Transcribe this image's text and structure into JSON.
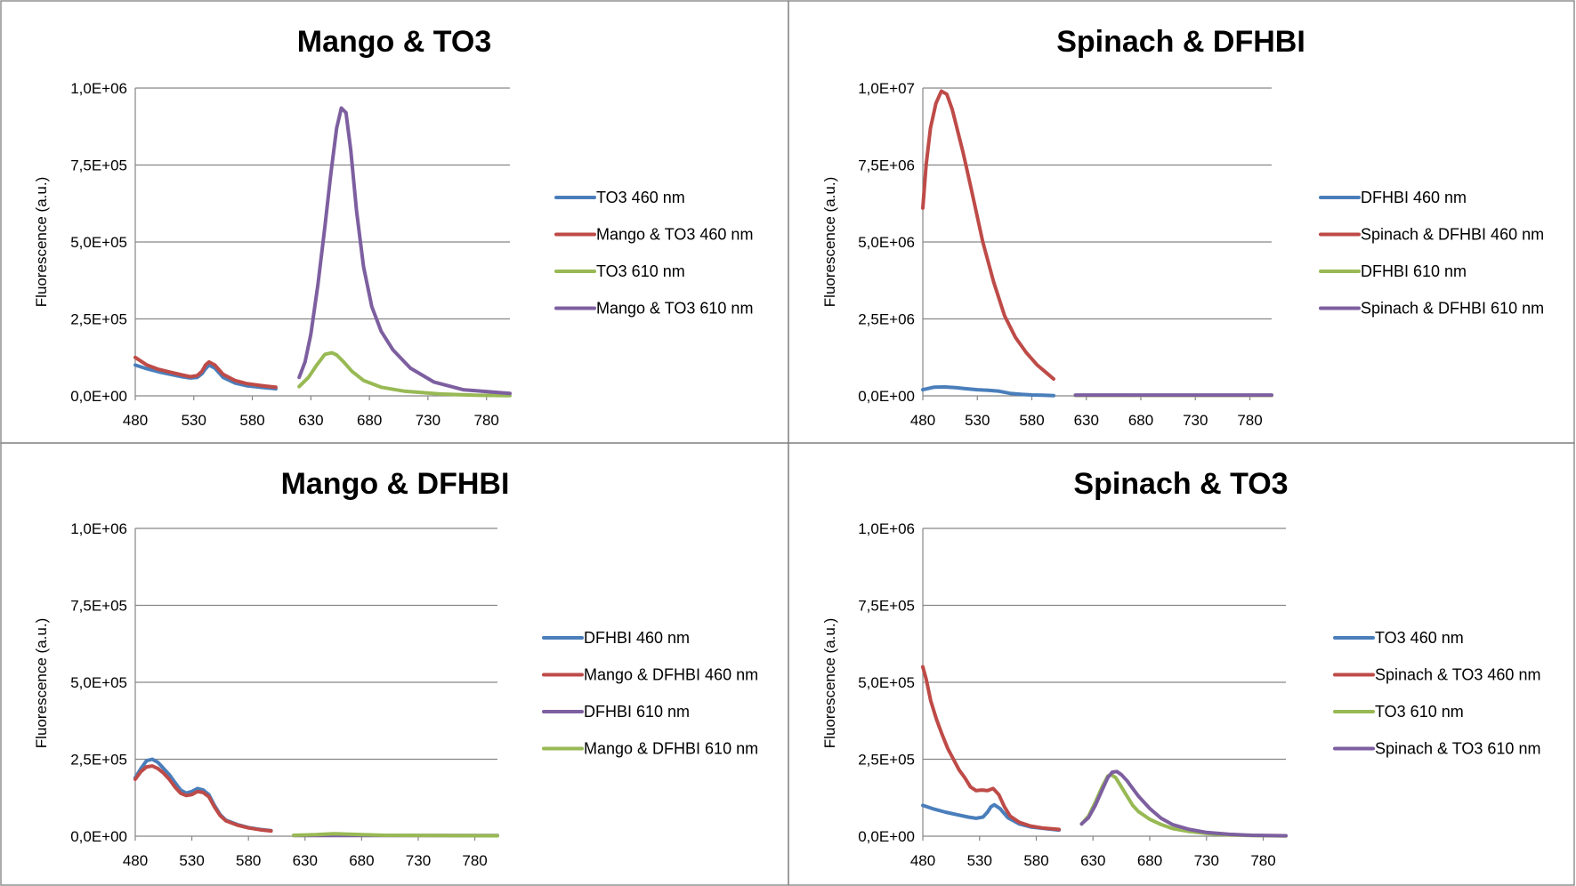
{
  "colors": {
    "blue": "#4a7ebb",
    "red": "#be4b48",
    "green": "#98b954",
    "purple": "#7d5fa0"
  },
  "chart_data": [
    {
      "type": "line",
      "title": "Mango & TO3",
      "xlabel": "",
      "ylabel": "Fluorescence (a.u.)",
      "xlim": [
        480,
        800
      ],
      "ylim": [
        0,
        1000000
      ],
      "xticks": [
        "480",
        "530",
        "580",
        "630",
        "680",
        "730",
        "780"
      ],
      "yticks": [
        "0,0E+00",
        "2,5E+05",
        "5,0E+05",
        "7,5E+05",
        "1,0E+06"
      ],
      "legend": "right",
      "grid": true,
      "series": [
        {
          "name": "TO3 460 nm",
          "color": "blue",
          "x": [
            480,
            490,
            500,
            510,
            520,
            527,
            533,
            537,
            540,
            543,
            548,
            555,
            565,
            575,
            590,
            600
          ],
          "y": [
            100000,
            88000,
            78000,
            70000,
            62000,
            58000,
            60000,
            72000,
            88000,
            100000,
            90000,
            60000,
            42000,
            33000,
            27000,
            23000
          ]
        },
        {
          "name": "Mango & TO3 460 nm",
          "color": "red",
          "x": [
            480,
            490,
            500,
            510,
            520,
            527,
            533,
            537,
            540,
            543,
            548,
            555,
            565,
            575,
            590,
            600
          ],
          "y": [
            125000,
            100000,
            86000,
            77000,
            68000,
            62000,
            66000,
            80000,
            100000,
            110000,
            100000,
            70000,
            50000,
            40000,
            32000,
            28000
          ]
        },
        {
          "name": "TO3 610 nm",
          "color": "green",
          "x": [
            620,
            628,
            635,
            642,
            648,
            652,
            658,
            665,
            675,
            690,
            710,
            740,
            770,
            800
          ],
          "y": [
            30000,
            60000,
            100000,
            135000,
            140000,
            133000,
            110000,
            80000,
            50000,
            28000,
            15000,
            6000,
            2000,
            1000
          ]
        },
        {
          "name": "Mango & TO3 610 nm",
          "color": "purple",
          "x": [
            620,
            625,
            630,
            636,
            642,
            647,
            652,
            656,
            660,
            664,
            669,
            675,
            682,
            690,
            700,
            715,
            735,
            760,
            800
          ],
          "y": [
            60000,
            110000,
            200000,
            360000,
            550000,
            720000,
            870000,
            935000,
            920000,
            800000,
            600000,
            420000,
            290000,
            210000,
            150000,
            90000,
            45000,
            20000,
            8000
          ]
        }
      ]
    },
    {
      "type": "line",
      "title": "Spinach & DFHBI",
      "xlabel": "",
      "ylabel": "Fluorescence (a.u.)",
      "xlim": [
        480,
        800
      ],
      "ylim": [
        0,
        10000000
      ],
      "xticks": [
        "480",
        "530",
        "580",
        "630",
        "680",
        "730",
        "780"
      ],
      "yticks": [
        "0,0E+00",
        "2,5E+06",
        "5,0E+06",
        "7,5E+06",
        "1,0E+07"
      ],
      "legend": "right",
      "grid": true,
      "series": [
        {
          "name": "DFHBI 460 nm",
          "color": "blue",
          "x": [
            480,
            490,
            500,
            510,
            520,
            530,
            540,
            550,
            560,
            570,
            580,
            590,
            600
          ],
          "y": [
            200000,
            280000,
            290000,
            270000,
            230000,
            200000,
            180000,
            150000,
            80000,
            50000,
            30000,
            20000,
            10000
          ]
        },
        {
          "name": "Spinach & DFHBI 460 nm",
          "color": "red",
          "x": [
            480,
            483,
            487,
            492,
            497,
            502,
            507,
            512,
            517,
            522,
            527,
            535,
            545,
            555,
            565,
            575,
            585,
            595,
            600
          ],
          "y": [
            6100000,
            7500000,
            8700000,
            9500000,
            9900000,
            9800000,
            9300000,
            8600000,
            7900000,
            7100000,
            6300000,
            5000000,
            3700000,
            2600000,
            1900000,
            1400000,
            1000000,
            700000,
            550000
          ]
        },
        {
          "name": "DFHBI 610 nm",
          "color": "green",
          "x": [
            620,
            650,
            700,
            750,
            800
          ],
          "y": [
            15000,
            15000,
            15000,
            15000,
            15000
          ]
        },
        {
          "name": "Spinach & DFHBI 610 nm",
          "color": "purple",
          "x": [
            620,
            650,
            700,
            750,
            800
          ],
          "y": [
            25000,
            25000,
            25000,
            25000,
            25000
          ]
        }
      ]
    },
    {
      "type": "line",
      "title": "Mango & DFHBI",
      "xlabel": "",
      "ylabel": "Fluorescence (a.u.)",
      "xlim": [
        480,
        800
      ],
      "ylim": [
        0,
        1000000
      ],
      "xticks": [
        "480",
        "530",
        "580",
        "630",
        "680",
        "730",
        "780"
      ],
      "yticks": [
        "0,0E+00",
        "2,5E+05",
        "5,0E+05",
        "7,5E+05",
        "1,0E+06"
      ],
      "legend": "right",
      "grid": true,
      "series": [
        {
          "name": "DFHBI 460 nm",
          "color": "blue",
          "x": [
            480,
            485,
            490,
            495,
            500,
            505,
            510,
            515,
            520,
            525,
            530,
            535,
            540,
            545,
            550,
            555,
            560,
            570,
            580,
            590,
            600
          ],
          "y": [
            190000,
            220000,
            245000,
            250000,
            240000,
            220000,
            200000,
            175000,
            150000,
            140000,
            145000,
            155000,
            150000,
            135000,
            100000,
            70000,
            52000,
            38000,
            28000,
            22000,
            18000
          ]
        },
        {
          "name": "Mango & DFHBI 460 nm",
          "color": "red",
          "x": [
            480,
            485,
            490,
            495,
            500,
            505,
            510,
            515,
            520,
            525,
            530,
            535,
            540,
            545,
            550,
            555,
            560,
            570,
            580,
            590,
            600
          ],
          "y": [
            185000,
            210000,
            225000,
            228000,
            220000,
            205000,
            185000,
            160000,
            140000,
            132000,
            135000,
            145000,
            142000,
            128000,
            95000,
            67000,
            50000,
            36000,
            27000,
            21000,
            17000
          ]
        },
        {
          "name": "DFHBI 610 nm",
          "color": "purple",
          "x": [
            620,
            650,
            700,
            750,
            800
          ],
          "y": [
            2000,
            2000,
            2000,
            2000,
            2000
          ]
        },
        {
          "name": "Mango & DFHBI 610 nm",
          "color": "green",
          "x": [
            620,
            640,
            655,
            665,
            680,
            700,
            750,
            800
          ],
          "y": [
            3000,
            5000,
            8000,
            7000,
            5000,
            3000,
            2000,
            1500
          ]
        }
      ]
    },
    {
      "type": "line",
      "title": "Spinach & TO3",
      "xlabel": "",
      "ylabel": "Fluorescence (a.u.)",
      "xlim": [
        480,
        800
      ],
      "ylim": [
        0,
        1000000
      ],
      "xticks": [
        "480",
        "530",
        "580",
        "630",
        "680",
        "730",
        "780"
      ],
      "yticks": [
        "0,0E+00",
        "2,5E+05",
        "5,0E+05",
        "7,5E+05",
        "1,0E+06"
      ],
      "legend": "right",
      "grid": true,
      "series": [
        {
          "name": "TO3 460 nm",
          "color": "blue",
          "x": [
            480,
            490,
            500,
            510,
            520,
            527,
            533,
            537,
            540,
            543,
            548,
            555,
            565,
            575,
            590,
            600
          ],
          "y": [
            100000,
            88000,
            78000,
            70000,
            62000,
            58000,
            62000,
            78000,
            95000,
            102000,
            90000,
            60000,
            40000,
            30000,
            24000,
            20000
          ]
        },
        {
          "name": "Spinach & TO3 460 nm",
          "color": "red",
          "x": [
            480,
            483,
            487,
            492,
            497,
            502,
            507,
            512,
            517,
            522,
            527,
            532,
            537,
            542,
            547,
            552,
            557,
            565,
            575,
            585,
            600
          ],
          "y": [
            550000,
            510000,
            440000,
            380000,
            330000,
            285000,
            250000,
            215000,
            190000,
            160000,
            148000,
            150000,
            148000,
            155000,
            135000,
            95000,
            65000,
            45000,
            33000,
            27000,
            22000
          ]
        },
        {
          "name": "TO3 610 nm",
          "color": "green",
          "x": [
            620,
            626,
            632,
            638,
            643,
            646,
            650,
            655,
            660,
            665,
            670,
            680,
            690,
            700,
            715,
            730,
            750,
            770,
            800
          ],
          "y": [
            40000,
            65000,
            110000,
            160000,
            195000,
            200000,
            190000,
            160000,
            130000,
            100000,
            80000,
            55000,
            38000,
            25000,
            15000,
            9000,
            4000,
            2000,
            1000
          ]
        },
        {
          "name": "Spinach & TO3 610 nm",
          "color": "purple",
          "x": [
            620,
            626,
            632,
            638,
            643,
            647,
            651,
            655,
            660,
            665,
            670,
            680,
            690,
            700,
            715,
            730,
            750,
            770,
            800
          ],
          "y": [
            40000,
            60000,
            100000,
            150000,
            190000,
            208000,
            210000,
            200000,
            180000,
            155000,
            130000,
            90000,
            58000,
            38000,
            22000,
            12000,
            6000,
            3000,
            1500
          ]
        }
      ]
    }
  ]
}
